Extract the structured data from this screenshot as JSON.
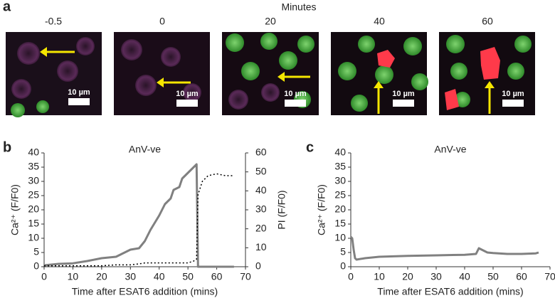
{
  "figure": {
    "panel_labels": [
      "a",
      "b",
      "c"
    ],
    "image_axis_title": "Minutes",
    "image_labels": [
      "-0.5",
      "0",
      "20",
      "40",
      "60"
    ],
    "scale_bar_labels": [
      "10 µm",
      "10 µm",
      "10 µm",
      "10 µm",
      "10 µm"
    ]
  },
  "chart_data": [
    {
      "type": "line",
      "title": "AnV-ve",
      "x_label": "Time after ESAT6 addition (mins)",
      "y_label": "Ca²⁺ (F/F0)",
      "y2_label": "PI (F/F0)",
      "x": [
        0,
        5,
        10,
        15,
        20,
        25,
        28,
        30,
        33,
        35,
        37,
        40,
        42,
        44,
        45,
        47,
        48,
        50,
        52,
        53,
        53.5,
        55,
        57,
        60,
        63,
        66
      ],
      "series": [
        {
          "color": "#808080",
          "style": "solid",
          "values": [
            0.5,
            1,
            1.2,
            2,
            3,
            3.5,
            5,
            6,
            6.5,
            9,
            13,
            18,
            22,
            24,
            27,
            28,
            31,
            33,
            35,
            36,
            0,
            0,
            0,
            0,
            0,
            0
          ]
        },
        {
          "color": "#000000",
          "style": "dotted",
          "axis": "y2",
          "values": [
            0.5,
            0.5,
            0.5,
            0.5,
            0.5,
            1,
            1,
            1,
            1.5,
            2,
            2,
            2,
            2,
            2,
            2,
            2,
            2,
            2,
            3,
            4,
            38,
            45,
            48,
            49,
            48,
            48
          ]
        }
      ],
      "xlim": [
        0,
        70
      ],
      "xticks": [
        0,
        10,
        20,
        30,
        40,
        50,
        60,
        70
      ],
      "ylim": [
        0,
        40
      ],
      "yticks": [
        0,
        5,
        10,
        15,
        20,
        25,
        30,
        35,
        40
      ],
      "y2lim": [
        0,
        60
      ],
      "y2ticks": [
        0,
        10,
        20,
        30,
        40,
        50,
        60
      ]
    },
    {
      "type": "line",
      "title": "AnV-ve",
      "x_label": "Time after ESAT6 addition (mins)",
      "y_label": "Ca²⁺ (F/F0)",
      "x": [
        0,
        0.5,
        1,
        1.5,
        2,
        5,
        10,
        20,
        30,
        40,
        44,
        45,
        46,
        48,
        50,
        55,
        60,
        65,
        66
      ],
      "series": [
        {
          "color": "#808080",
          "style": "solid",
          "values": [
            10.5,
            10,
            6,
            3,
            2.5,
            3,
            3.5,
            3.8,
            4,
            4.2,
            4.5,
            6.5,
            6,
            5,
            4.8,
            4.5,
            4.5,
            4.7,
            5
          ]
        }
      ],
      "xlim": [
        0,
        70
      ],
      "xticks": [
        0,
        10,
        20,
        30,
        40,
        50,
        60,
        70
      ],
      "ylim": [
        0,
        40
      ],
      "yticks": [
        0,
        5,
        10,
        15,
        20,
        25,
        30,
        35,
        40
      ]
    }
  ]
}
